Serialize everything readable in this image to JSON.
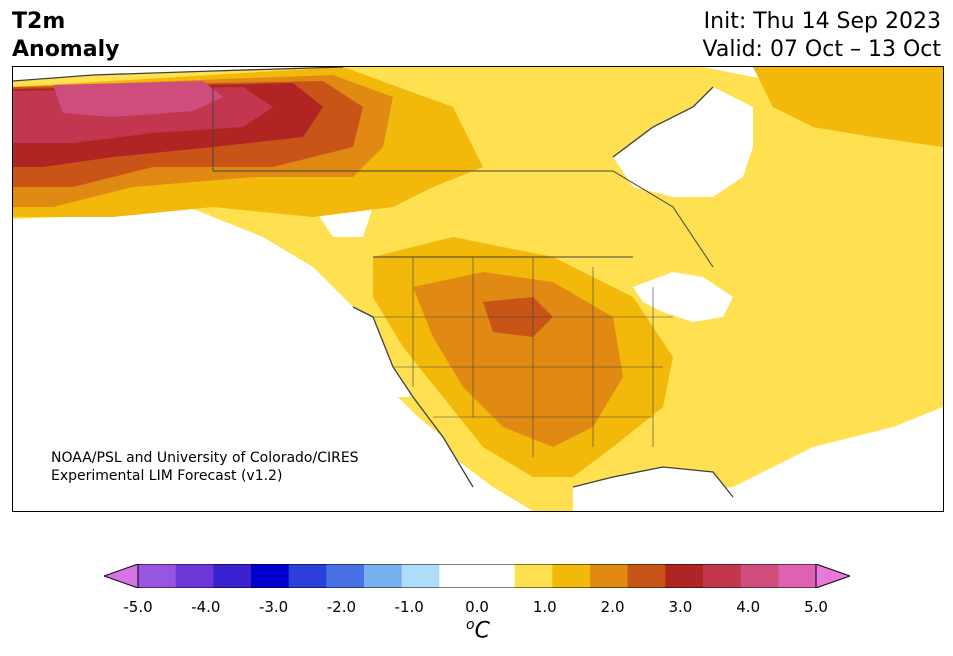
{
  "title": {
    "variable_line1": "T2m",
    "variable_line2": "Anomaly",
    "init": "Init: Thu 14 Sep 2023",
    "valid": "Valid: 07 Oct – 13 Oct"
  },
  "map": {
    "region": "North America",
    "credit_line1": "NOAA/PSL and University of Colorado/CIRES",
    "credit_line2": "Experimental LIM Forecast (v1.2)"
  },
  "colorbar": {
    "unit_base": "C",
    "unit_sup": "o",
    "tick_labels": [
      "-5.0",
      "-4.0",
      "-3.0",
      "-2.0",
      "-1.0",
      "0.0",
      "1.0",
      "2.0",
      "3.0",
      "4.0",
      "5.0"
    ],
    "colors": {
      "under": "#d772e8",
      "bins": [
        "#9a55e0",
        "#6a3ad8",
        "#3a22d0",
        "#0000cc",
        "#2a3fdc",
        "#4a70e6",
        "#78b0f2",
        "#aedcfa",
        "#ffffff",
        "#ffffff",
        "#ffe050",
        "#f2b80a",
        "#e08a14",
        "#c85418",
        "#b02424",
        "#c23650",
        "#cf4d7c",
        "#dd62b0"
      ],
      "over": "#e878dc"
    }
  }
}
